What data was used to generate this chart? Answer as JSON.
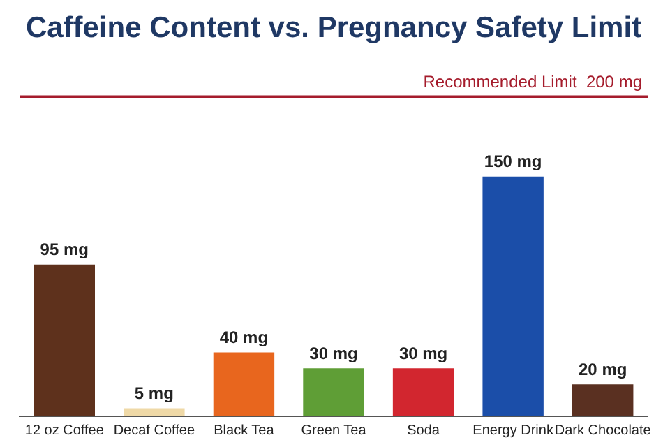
{
  "chart_data": {
    "type": "bar",
    "title": "Caffeine Content vs. Pregnancy Safety Limit",
    "categories": [
      "12 oz Coffee",
      "Decaf Coffee",
      "Black Tea",
      "Green Tea",
      "Soda",
      "Energy Drink",
      "Dark Chocolate"
    ],
    "values": [
      95,
      5,
      40,
      30,
      30,
      150,
      20
    ],
    "colors": [
      "#5e311c",
      "#efd9a7",
      "#e8661e",
      "#5f9e36",
      "#d2262f",
      "#1b4ea9",
      "#5a3021"
    ],
    "value_labels": [
      "95 mg",
      "5 mg",
      "40 mg",
      "30 mg",
      "30 mg",
      "150 mg",
      "20 mg"
    ],
    "ref_lines": [
      {
        "axis": "y",
        "value": 200,
        "label": "Recommended Limit  200 mg",
        "color": "#a51c2c"
      }
    ],
    "tick_labels": "x",
    "grid": false,
    "legend": false
  }
}
